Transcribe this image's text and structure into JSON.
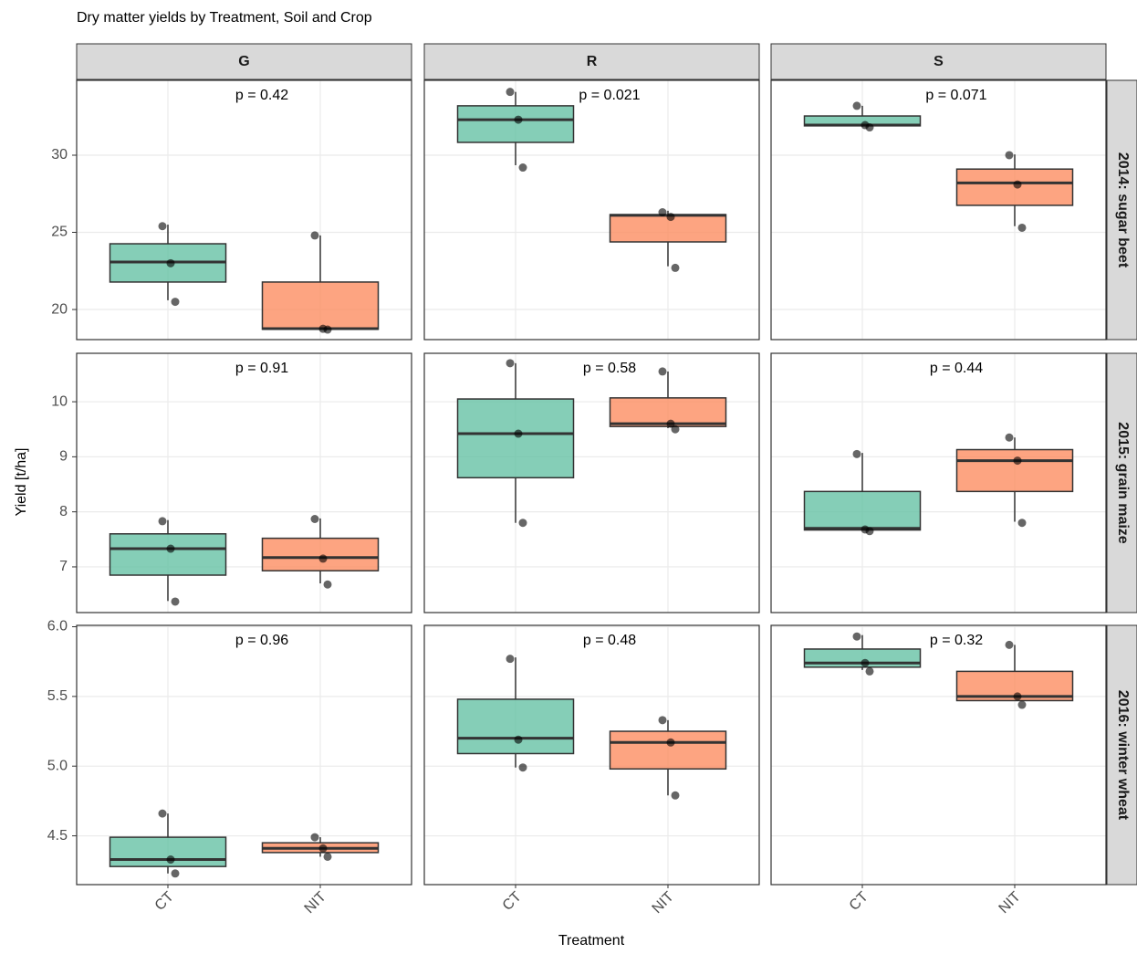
{
  "chart_data": {
    "type": "boxplot",
    "title": "Dry matter yields by Treatment, Soil and Crop",
    "xlabel": "Treatment",
    "ylabel": "Yield [t/ha]",
    "grid": true,
    "columns": [
      "G",
      "R",
      "S"
    ],
    "categories": [
      "CT",
      "NIT"
    ],
    "colors": [
      "#66c2a5",
      "#fc8d62"
    ],
    "rows": [
      {
        "label": "2014: sugar beet",
        "ylim": [
          18.05,
          34.85
        ],
        "yticks": [
          20,
          25,
          30
        ],
        "panels": [
          {
            "p_label": "p = 0.42",
            "boxes": [
              {
                "min": 20.6,
                "q1": 21.78,
                "median": 23.08,
                "q3": 24.26,
                "max": 25.5,
                "points": [
                  25.4,
                  23.0,
                  20.5
                ]
              },
              {
                "min": 18.7,
                "q1": 18.72,
                "median": 18.76,
                "q3": 21.78,
                "max": 24.8,
                "points": [
                  24.8,
                  18.75,
                  18.7
                ]
              }
            ]
          },
          {
            "p_label": "p = 0.021",
            "boxes": [
              {
                "min": 29.35,
                "q1": 30.83,
                "median": 32.3,
                "q3": 33.2,
                "max": 34.1,
                "points": [
                  34.1,
                  32.3,
                  29.2
                ]
              },
              {
                "min": 22.8,
                "q1": 24.38,
                "median": 26.1,
                "q3": 26.15,
                "max": 26.4,
                "points": [
                  26.3,
                  26.0,
                  22.7
                ]
              }
            ]
          },
          {
            "p_label": "p = 0.071",
            "boxes": [
              {
                "min": 31.85,
                "q1": 31.9,
                "median": 31.95,
                "q3": 32.54,
                "max": 33.2,
                "points": [
                  33.2,
                  31.95,
                  31.8
                ]
              },
              {
                "min": 25.4,
                "q1": 26.75,
                "median": 28.2,
                "q3": 29.1,
                "max": 30.05,
                "points": [
                  30.0,
                  28.1,
                  25.3
                ]
              }
            ]
          }
        ]
      },
      {
        "label": "2015: grain maize",
        "ylim": [
          6.17,
          10.88
        ],
        "yticks": [
          7,
          8,
          9,
          10
        ],
        "panels": [
          {
            "p_label": "p = 0.91",
            "boxes": [
              {
                "min": 6.38,
                "q1": 6.85,
                "median": 7.33,
                "q3": 7.6,
                "max": 7.85,
                "points": [
                  7.83,
                  7.33,
                  6.37
                ]
              },
              {
                "min": 6.7,
                "q1": 6.93,
                "median": 7.17,
                "q3": 7.52,
                "max": 7.88,
                "points": [
                  7.87,
                  7.15,
                  6.68
                ]
              }
            ]
          },
          {
            "p_label": "p = 0.58",
            "boxes": [
              {
                "min": 7.8,
                "q1": 8.62,
                "median": 9.42,
                "q3": 10.05,
                "max": 10.7,
                "points": [
                  10.7,
                  9.42,
                  7.8
                ]
              },
              {
                "min": 9.52,
                "q1": 9.55,
                "median": 9.6,
                "q3": 10.07,
                "max": 10.55,
                "points": [
                  10.55,
                  9.6,
                  9.5
                ]
              }
            ]
          },
          {
            "p_label": "p = 0.44",
            "boxes": [
              {
                "min": 7.67,
                "q1": 7.67,
                "median": 7.7,
                "q3": 8.37,
                "max": 9.07,
                "points": [
                  9.05,
                  7.68,
                  7.65
                ]
              },
              {
                "min": 7.82,
                "q1": 8.37,
                "median": 8.93,
                "q3": 9.13,
                "max": 9.35,
                "points": [
                  9.35,
                  8.93,
                  7.8
                ]
              }
            ]
          }
        ]
      },
      {
        "label": "2016: winter wheat",
        "ylim": [
          4.15,
          6.01
        ],
        "yticks": [
          4.5,
          {
            "value": 5,
            "label": "5.0"
          },
          5.5,
          {
            "value": 6,
            "label": "6.0"
          }
        ],
        "panels": [
          {
            "p_label": "p = 0.96",
            "boxes": [
              {
                "min": 4.23,
                "q1": 4.28,
                "median": 4.33,
                "q3": 4.49,
                "max": 4.66,
                "points": [
                  4.66,
                  4.33,
                  4.23
                ]
              },
              {
                "min": 4.35,
                "q1": 4.38,
                "median": 4.41,
                "q3": 4.45,
                "max": 4.49,
                "points": [
                  4.49,
                  4.41,
                  4.35
                ]
              }
            ]
          },
          {
            "p_label": "p = 0.48",
            "boxes": [
              {
                "min": 4.99,
                "q1": 5.09,
                "median": 5.2,
                "q3": 5.48,
                "max": 5.78,
                "points": [
                  5.77,
                  5.19,
                  4.99
                ]
              },
              {
                "min": 4.79,
                "q1": 4.98,
                "median": 5.17,
                "q3": 5.25,
                "max": 5.33,
                "points": [
                  5.33,
                  5.17,
                  4.79
                ]
              }
            ]
          },
          {
            "p_label": "p = 0.32",
            "boxes": [
              {
                "min": 5.69,
                "q1": 5.71,
                "median": 5.74,
                "q3": 5.84,
                "max": 5.94,
                "points": [
                  5.93,
                  5.74,
                  5.68
                ]
              },
              {
                "min": 5.47,
                "q1": 5.47,
                "median": 5.5,
                "q3": 5.68,
                "max": 5.87,
                "points": [
                  5.87,
                  5.5,
                  5.44
                ]
              }
            ]
          }
        ]
      }
    ]
  }
}
